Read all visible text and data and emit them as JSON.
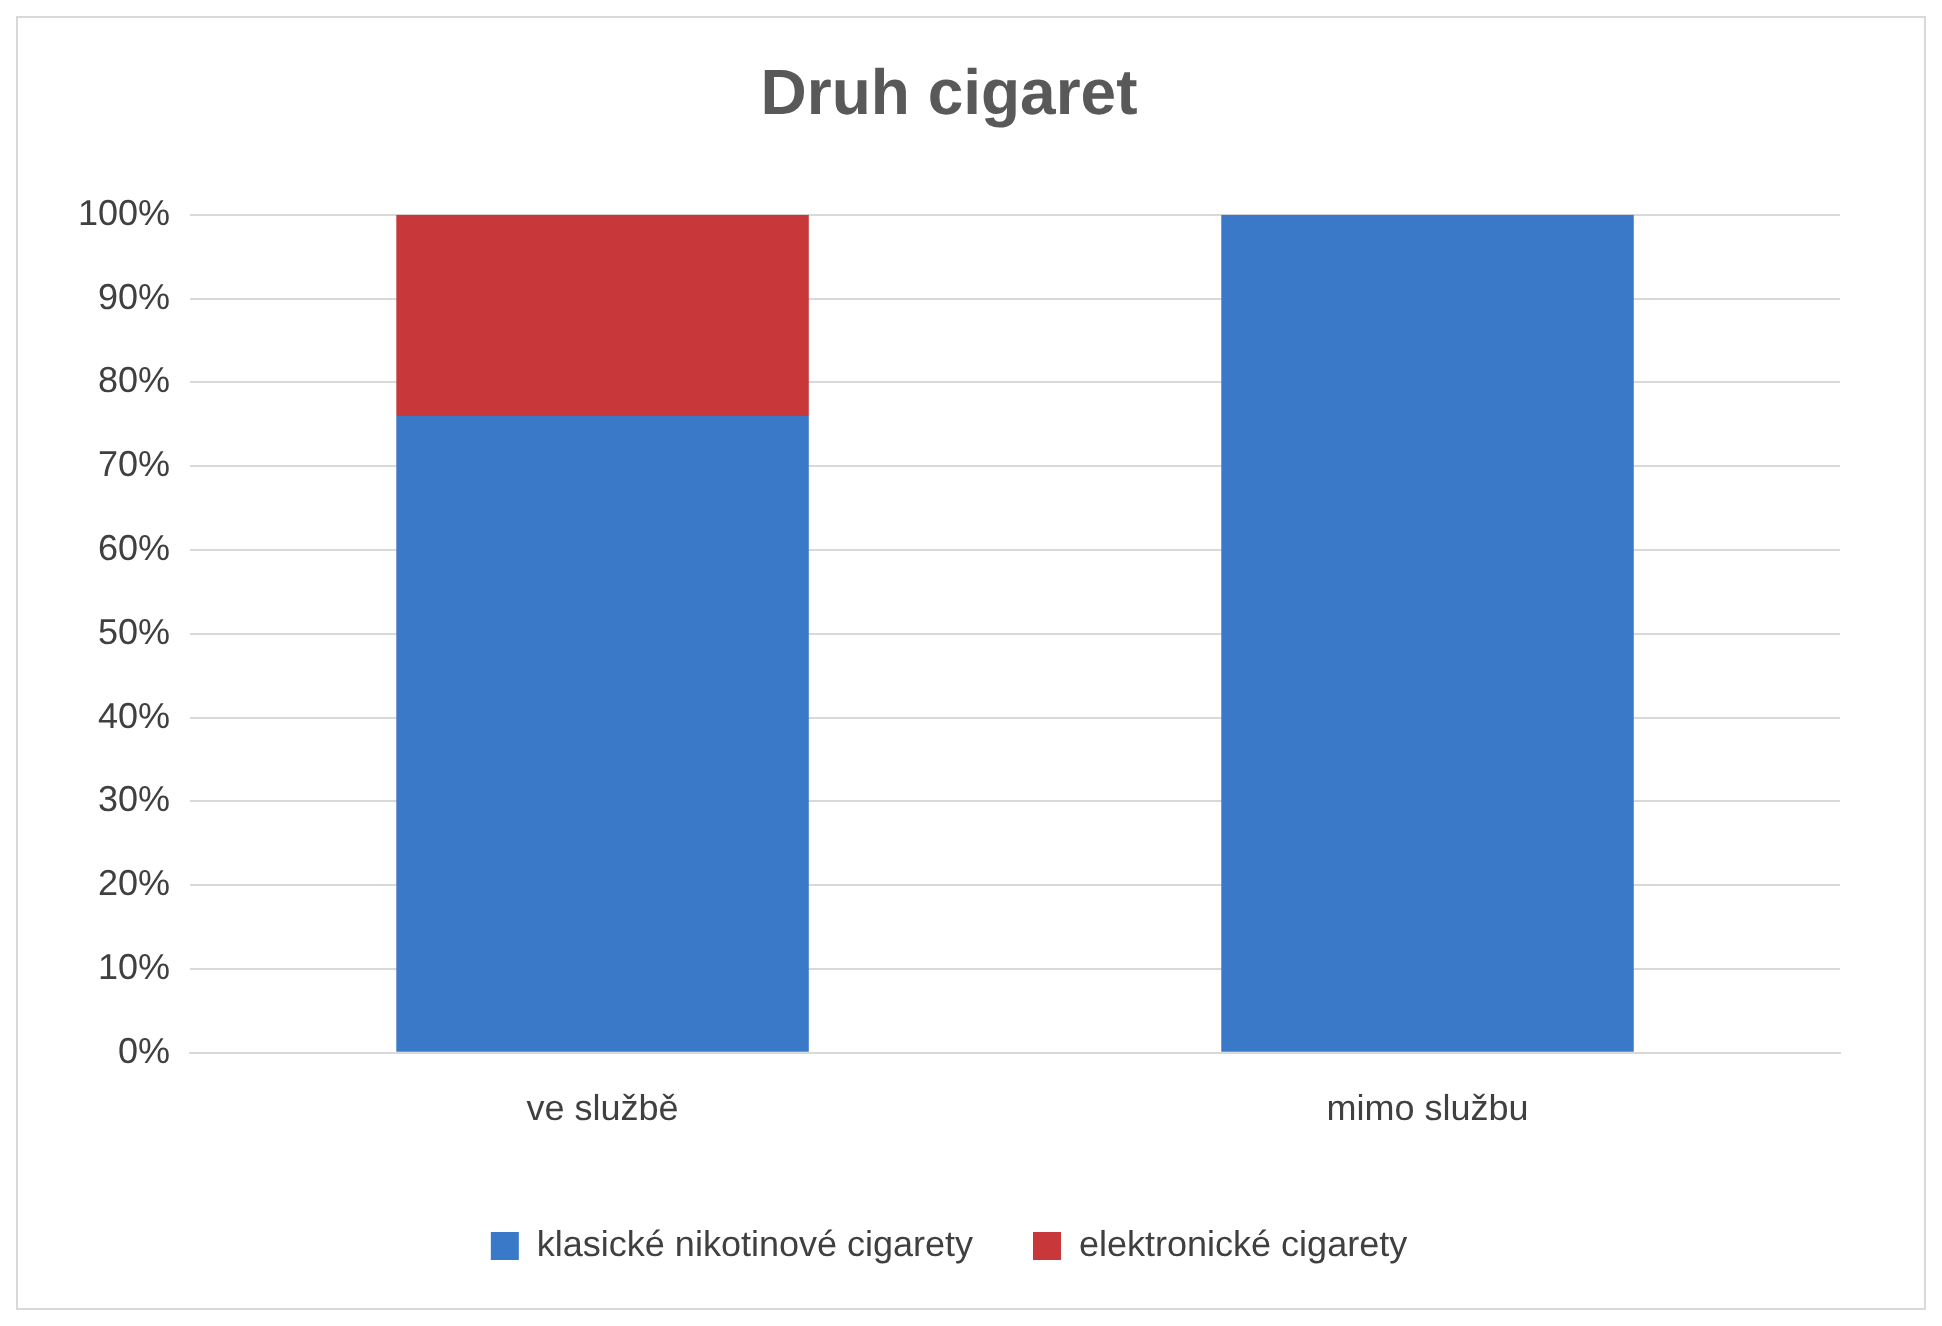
{
  "chart_data": {
    "type": "bar",
    "title": "Druh cigaret",
    "categories": [
      "ve službě",
      "mimo službu"
    ],
    "stacked": true,
    "series": [
      {
        "name": "klasické nikotinové cigarety",
        "color": "#3a78c8",
        "values": [
          76,
          100
        ]
      },
      {
        "name": "elektronické cigarety",
        "color": "#c8383a",
        "values": [
          24,
          0
        ]
      }
    ],
    "ylim": [
      0,
      100
    ],
    "yticks": [
      {
        "value": 0,
        "label": "0%"
      },
      {
        "value": 10,
        "label": "10%"
      },
      {
        "value": 20,
        "label": "20%"
      },
      {
        "value": 30,
        "label": "30%"
      },
      {
        "value": 40,
        "label": "40%"
      },
      {
        "value": 50,
        "label": "50%"
      },
      {
        "value": 60,
        "label": "60%"
      },
      {
        "value": 70,
        "label": "70%"
      },
      {
        "value": 80,
        "label": "80%"
      },
      {
        "value": 90,
        "label": "90%"
      },
      {
        "value": 100,
        "label": "100%"
      }
    ],
    "grid": "y",
    "legend": "bottom"
  }
}
